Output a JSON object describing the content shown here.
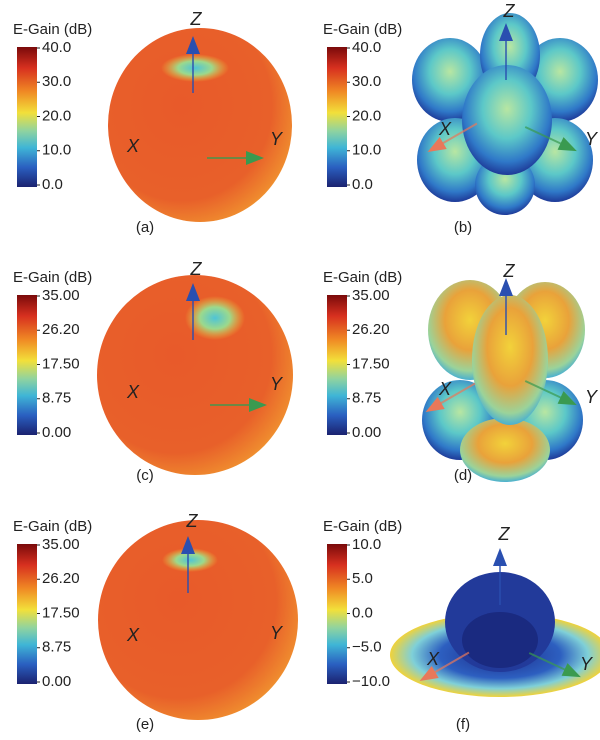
{
  "panels": [
    {
      "colorbar": {
        "title": "E-Gain (dB)",
        "ticks": [
          "40.0",
          "30.0",
          "20.0",
          "10.0",
          "0.0"
        ]
      },
      "axes": {
        "x": "X",
        "y": "Y",
        "z": "Z"
      },
      "caption": "(a)"
    },
    {
      "colorbar": {
        "title": "E-Gain (dB)",
        "ticks": [
          "40.0",
          "30.0",
          "20.0",
          "10.0",
          "0.0"
        ]
      },
      "axes": {
        "x": "X",
        "y": "Y",
        "z": "Z"
      },
      "caption": "(b)"
    },
    {
      "colorbar": {
        "title": "E-Gain (dB)",
        "ticks": [
          "35.00",
          "26.20",
          "17.50",
          "8.75",
          "0.00"
        ]
      },
      "axes": {
        "x": "X",
        "y": "Y",
        "z": "Z"
      },
      "caption": "(c)"
    },
    {
      "colorbar": {
        "title": "E-Gain (dB)",
        "ticks": [
          "35.00",
          "26.20",
          "17.50",
          "8.75",
          "0.00"
        ]
      },
      "axes": {
        "x": "X",
        "y": "Y",
        "z": "Z"
      },
      "caption": "(d)"
    },
    {
      "colorbar": {
        "title": "E-Gain (dB)",
        "ticks": [
          "35.00",
          "26.20",
          "17.50",
          "8.75",
          "0.00"
        ]
      },
      "axes": {
        "x": "X",
        "y": "Y",
        "z": "Z"
      },
      "caption": "(e)"
    },
    {
      "colorbar": {
        "title": "E-Gain (dB)",
        "ticks": [
          "10.0",
          "5.0",
          "0.0",
          "−5.0",
          "−10.0"
        ]
      },
      "axes": {
        "x": "X",
        "y": "Y",
        "z": "Z"
      },
      "caption": "(f)"
    }
  ]
}
